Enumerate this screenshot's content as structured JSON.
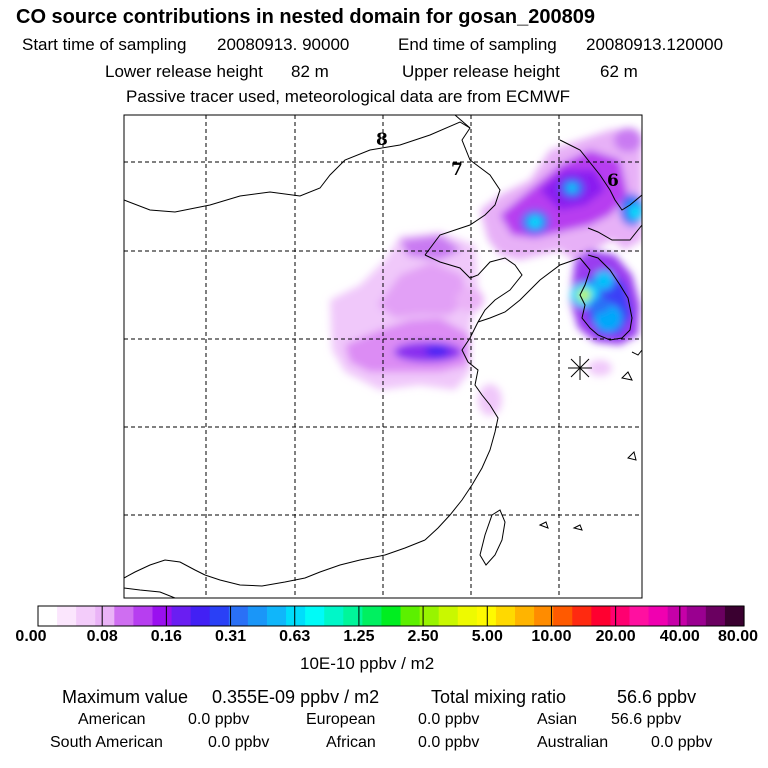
{
  "header": {
    "title": "CO  source contributions in nested domain for gosan_200809",
    "start_label": "Start time of sampling",
    "start_value": "20080913. 90000",
    "end_label": "End time of sampling",
    "end_value": "20080913.120000",
    "lower_label": "Lower release height",
    "lower_value": "82 m",
    "upper_label": "Upper release height",
    "upper_value": "62 m",
    "tracer_note": "Passive tracer used, meteorological data are from ECMWF"
  },
  "map": {
    "grid_labels": [
      "8",
      "7",
      "6"
    ],
    "receptor_marker": "asterisk"
  },
  "colorbar": {
    "units": "10E-10 ppbv / m2",
    "tick_labels": [
      "0.00",
      "0.08",
      "0.16",
      "0.31",
      "0.63",
      "1.25",
      "2.50",
      "5.00",
      "10.00",
      "20.00",
      "40.00",
      "80.00"
    ],
    "colors": [
      "#ffffff",
      "#fbe6fd",
      "#f3ccfa",
      "#eab3f7",
      "#cf6ef1",
      "#b73ef0",
      "#9a10ef",
      "#6a1ef2",
      "#4220f4",
      "#2a40f6",
      "#2a70f6",
      "#1a96f8",
      "#10b6fa",
      "#00ddfb",
      "#00fbf7",
      "#00f7c8",
      "#00f69a",
      "#00f060",
      "#00ee20",
      "#5cf000",
      "#98f400",
      "#c9f800",
      "#eefa00",
      "#fffa00",
      "#ffd900",
      "#ffb400",
      "#ff8c00",
      "#ff5a00",
      "#ff2a10",
      "#ff0030",
      "#ff0070",
      "#ff10a0",
      "#f000b0",
      "#c600a8",
      "#9a0090",
      "#6a0060",
      "#3a0030"
    ]
  },
  "stats": {
    "max_label": "Maximum value",
    "max_value": "0.355E-09 ppbv / m2",
    "total_label": "Total mixing ratio",
    "total_value": "56.6 ppbv",
    "sources": [
      {
        "name": "American",
        "value": "0.0 ppbv"
      },
      {
        "name": "European",
        "value": "0.0 ppbv"
      },
      {
        "name": "Asian",
        "value": "56.6 ppbv"
      },
      {
        "name": "South American",
        "value": "0.0 ppbv"
      },
      {
        "name": "African",
        "value": "0.0 ppbv"
      },
      {
        "name": "Australian",
        "value": "0.0 ppbv"
      }
    ]
  }
}
